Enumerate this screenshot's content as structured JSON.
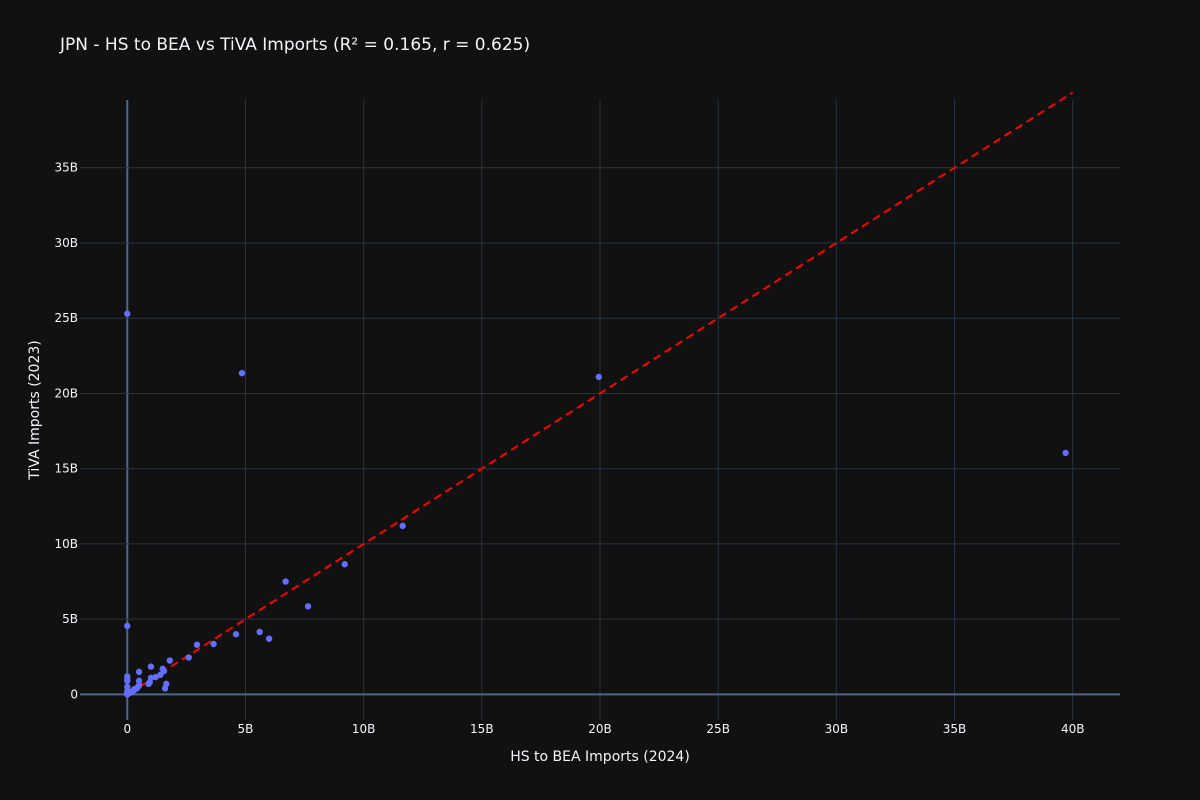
{
  "chart_data": {
    "type": "scatter",
    "title": "JPN - HS to BEA vs TiVA Imports (R² = 0.165, r = 0.625)",
    "xlabel": "HS to BEA Imports (2024)",
    "ylabel": "TiVA Imports (2023)",
    "xlim": [
      -2000000000,
      42000000000
    ],
    "ylim": [
      -1700000000,
      39500000000
    ],
    "x_ticks": [
      0,
      5000000000,
      10000000000,
      15000000000,
      20000000000,
      25000000000,
      30000000000,
      35000000000,
      40000000000
    ],
    "x_tick_labels": [
      "0",
      "5B",
      "10B",
      "15B",
      "20B",
      "25B",
      "30B",
      "35B",
      "40B"
    ],
    "y_ticks": [
      0,
      5000000000,
      10000000000,
      15000000000,
      20000000000,
      25000000000,
      30000000000,
      35000000000
    ],
    "y_tick_labels": [
      "0",
      "5B",
      "10B",
      "15B",
      "20B",
      "25B",
      "30B",
      "35B"
    ],
    "grid": true,
    "marker_color": "#636efa",
    "line_color": "#ff0000",
    "fit_line": {
      "x": [
        0,
        40000000000
      ],
      "y": [
        0,
        40000000000
      ]
    },
    "series": [
      {
        "x": [
          0,
          0,
          0,
          0,
          0,
          0,
          0,
          0,
          0,
          100000000,
          200000000,
          300000000,
          400000000,
          500000000,
          500000000,
          500000000,
          900000000,
          950000000,
          1000000000,
          1000000000,
          1200000000,
          1400000000,
          1500000000,
          1550000000,
          1600000000,
          1650000000,
          1800000000,
          2600000000,
          2950000000,
          3650000000,
          4600000000,
          4850000000,
          5600000000,
          6000000000,
          6700000000,
          7650000000,
          9200000000,
          11650000000,
          19950000000,
          39700000000,
          450000000,
          300000000,
          200000000
        ],
        "y": [
          25300000000,
          4550000000,
          1200000000,
          1000000000,
          900000000,
          500000000,
          200000000,
          100000000,
          0,
          100000000,
          200000000,
          300000000,
          400000000,
          600000000,
          900000000,
          1500000000,
          700000000,
          800000000,
          1100000000,
          1850000000,
          1150000000,
          1300000000,
          1700000000,
          1550000000,
          400000000,
          700000000,
          2250000000,
          2450000000,
          3300000000,
          3350000000,
          4000000000,
          21350000000,
          4150000000,
          3700000000,
          7500000000,
          5850000000,
          8650000000,
          11200000000,
          21100000000,
          16050000000,
          500000000,
          350000000,
          150000000
        ]
      }
    ]
  }
}
